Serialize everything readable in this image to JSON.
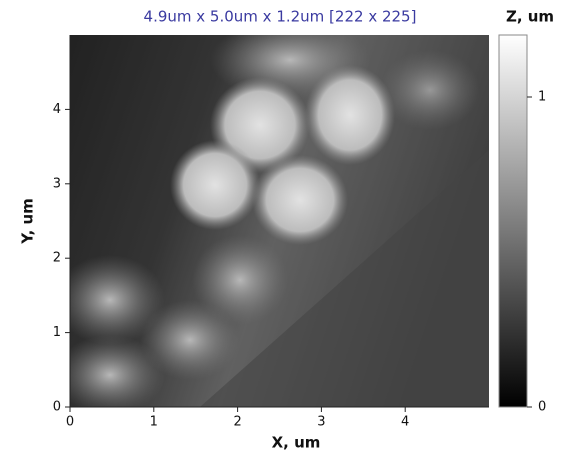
{
  "chart_data": {
    "type": "image",
    "title": "4.9um x 5.0um x 1.2um [222 x 225]",
    "x_label": "X, um",
    "y_label": "Y, um",
    "colorbar_label": "Z, um",
    "xlim": [
      0,
      5
    ],
    "xticks": [
      0,
      1,
      2,
      3,
      4
    ],
    "ylim": [
      0,
      5
    ],
    "yticks": [
      0,
      1,
      2,
      3,
      4
    ],
    "zlim": [
      0,
      1.2
    ],
    "zticks": [
      0,
      1
    ],
    "title_color": "#3a3aa0"
  }
}
